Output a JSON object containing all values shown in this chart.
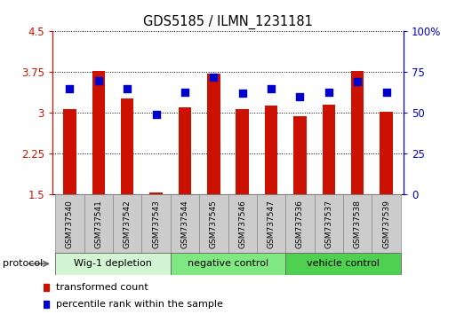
{
  "title": "GDS5185 / ILMN_1231181",
  "samples": [
    "GSM737540",
    "GSM737541",
    "GSM737542",
    "GSM737543",
    "GSM737544",
    "GSM737545",
    "GSM737546",
    "GSM737547",
    "GSM737536",
    "GSM737537",
    "GSM737538",
    "GSM737539"
  ],
  "transformed_counts": [
    3.07,
    3.77,
    3.27,
    1.54,
    3.1,
    3.73,
    3.08,
    3.13,
    2.95,
    3.15,
    3.77,
    3.02
  ],
  "percentile_ranks": [
    65,
    70,
    65,
    49,
    63,
    72,
    62,
    65,
    60,
    63,
    69,
    63
  ],
  "groups": [
    {
      "label": "Wig-1 depletion",
      "start": 0,
      "end": 3,
      "color": "#d4f5d4"
    },
    {
      "label": "negative control",
      "start": 4,
      "end": 7,
      "color": "#80e880"
    },
    {
      "label": "vehicle control",
      "start": 8,
      "end": 11,
      "color": "#50d050"
    }
  ],
  "ylim_left": [
    1.5,
    4.5
  ],
  "ylim_right": [
    0,
    100
  ],
  "yticks_left": [
    1.5,
    2.25,
    3.0,
    3.75,
    4.5
  ],
  "ytick_labels_left": [
    "1.5",
    "2.25",
    "3",
    "3.75",
    "4.5"
  ],
  "yticks_right": [
    0,
    25,
    50,
    75,
    100
  ],
  "ytick_labels_right": [
    "0",
    "25",
    "50",
    "75",
    "100%"
  ],
  "bar_color": "#cc1100",
  "bar_width": 0.45,
  "dot_color": "#0000cc",
  "dot_size": 35,
  "left_axis_color": "#cc1100",
  "right_axis_color": "#0000cc",
  "background_plot": "#ffffff",
  "background_label": "#cccccc",
  "protocol_label": "protocol",
  "legend_items": [
    {
      "color": "#cc1100",
      "label": "transformed count"
    },
    {
      "color": "#0000cc",
      "label": "percentile rank within the sample"
    }
  ]
}
